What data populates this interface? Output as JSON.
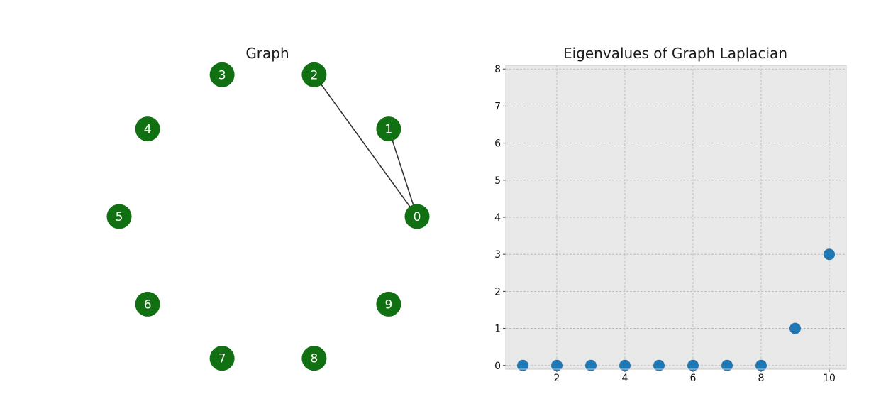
{
  "colors": {
    "node_fill": "#117011",
    "node_text": "#ffffff",
    "edge": "#333333",
    "point": "#1f77b4",
    "axes_bg": "#e9e9e9",
    "grid": "#b4b4b4"
  },
  "chart_data": [
    {
      "type": "network",
      "title": "Graph",
      "layout": "circular",
      "nodes": [
        "0",
        "1",
        "2",
        "3",
        "4",
        "5",
        "6",
        "7",
        "8",
        "9"
      ],
      "edges": [
        [
          "0",
          "1"
        ],
        [
          "0",
          "2"
        ]
      ]
    },
    {
      "type": "scatter",
      "title": "Eigenvalues of Graph Laplacian",
      "xlabel": "",
      "ylabel": "",
      "x": [
        1,
        2,
        3,
        4,
        5,
        6,
        7,
        8,
        9,
        10
      ],
      "y": [
        0,
        0,
        0,
        0,
        0,
        0,
        0,
        0,
        1,
        3
      ],
      "xlim": [
        0.5,
        10.5
      ],
      "ylim": [
        -0.1,
        8.1
      ],
      "xticks": [
        2,
        4,
        6,
        8,
        10
      ],
      "yticks": [
        0,
        1,
        2,
        3,
        4,
        5,
        6,
        7,
        8
      ],
      "grid": true
    }
  ]
}
